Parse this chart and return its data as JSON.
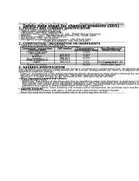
{
  "bg_color": "#ffffff",
  "header_left": "Product Name: Lithium Ion Battery Cell",
  "header_right_line1": "Reference Number: SDS-048-00615",
  "header_right_line2": "Established / Revision: Dec.7.2016",
  "main_title": "Safety data sheet for chemical products (SDS)",
  "section1_title": "1. PRODUCT AND COMPANY IDENTIFICATION",
  "s1_items": [
    "Product name: Lithium Ion Battery Cell",
    "Product code: Cylindrical-type cell",
    "   (INR18650, INR18650, INR18650A)",
    "Company name:   Sanyo Electric Co., Ltd.,  Mobile Energy Company",
    "Address:          2001  Kamitanakami, Sumoto-City, Hyogo, Japan",
    "Telephone number:   +81-799-26-4111",
    "Fax number:  +81-799-26-4126",
    "Emergency telephone number (daytime): +81-799-26-3942",
    "                                (Night and holiday): +81-799-26-4126"
  ],
  "section2_title": "2. COMPOSITION / INFORMATION ON INGREDIENTS",
  "s2_intro": "Substance or preparation: Preparation",
  "s2_sub": "Information about the chemical nature of product:",
  "table_headers": [
    "Component / composition",
    "CAS number",
    "Concentration /\nConcentration range",
    "Classification and\nhazard labeling"
  ],
  "table_col2_header": "Common name",
  "table_rows": [
    [
      "Lithium cobalt oxide\n(LiMnxCoyNizO2)",
      "-",
      "30-60%",
      "-"
    ],
    [
      "Iron",
      "7439-89-6",
      "15-35%",
      "-"
    ],
    [
      "Aluminum",
      "7429-90-5",
      "2-5%",
      "-"
    ],
    [
      "Graphite\n(Metal in graphite-1)\n(M-Mn in graphite-2)",
      "7782-42-5\n7782-44-2",
      "10-25%",
      "-"
    ],
    [
      "Copper",
      "7440-50-8",
      "5-15%",
      "Sensitization of the skin\ngroup No.2"
    ],
    [
      "Organic electrolyte",
      "-",
      "10-20%",
      "Inflammable liquid"
    ]
  ],
  "section3_title": "3. HAZARDS IDENTIFICATION",
  "s3_para1": "For the battery cell, chemical materials are stored in a hermetically sealed metal case, designed to withstand temperatures during its manufactures-specifications during normal use. As a result, during normal use, there is no physical danger of ignition or explosion and therefore danger of hazardous materials leakage.",
  "s3_para2": "However, if exposed to a fire, added mechanical shocks, decomposed, when electro-chemical dry miss-use, the gas inside cannot be operated. The battery cell case will be breached of fire-patterns. Hazardous materials may be released.",
  "s3_para3": "Moreover, if heated strongly by the surrounding fire, solid gas may be emitted.",
  "s3_bullet1": "Most important hazard and effects:",
  "s3_human": "Human health effects:",
  "s3_inhalation": "Inhalation: The release of the electrolyte has an anesthesia action and stimulates in respiratory tract.",
  "s3_skin": "Skin contact: The release of the electrolyte stimulates a skin. The electrolyte skin contact causes a sore and stimulation on the skin.",
  "s3_eye": "Eye contact: The release of the electrolyte stimulates eyes. The electrolyte eye contact causes a sore and stimulation on the eye. Especially, a substance that causes a strong inflammation of the eye is combined.",
  "s3_env": "Environmental effects: Since a battery cell remains in the environment, do not throw out it into the environment.",
  "s3_bullet2": "Specific hazards:",
  "s3_sp1": "If the electrolyte contacts with water, it will generate detrimental hydrogen fluoride.",
  "s3_sp2": "Since the used electrolyte is inflammable liquid, do not bring close to fire."
}
